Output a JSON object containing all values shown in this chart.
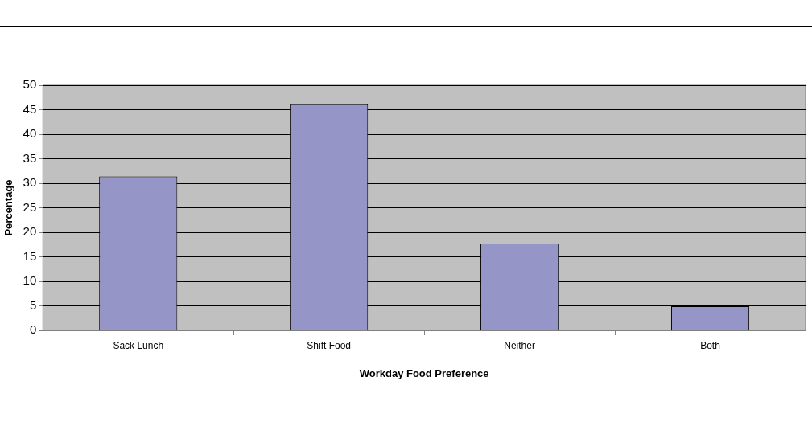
{
  "chart_data": {
    "type": "bar",
    "xlabel": "Workday Food Preference",
    "ylabel": "Percentage",
    "categories": [
      "Sack Lunch",
      "Shift Food",
      "Neither",
      "Both"
    ],
    "values": [
      31.4,
      46.1,
      17.7,
      4.9
    ],
    "color": "#9595c8",
    "ylim": [
      0,
      50
    ],
    "yticks": [
      0,
      5,
      10,
      15,
      20,
      25,
      30,
      35,
      40,
      45,
      50
    ],
    "grid": "y",
    "legend": false
  }
}
